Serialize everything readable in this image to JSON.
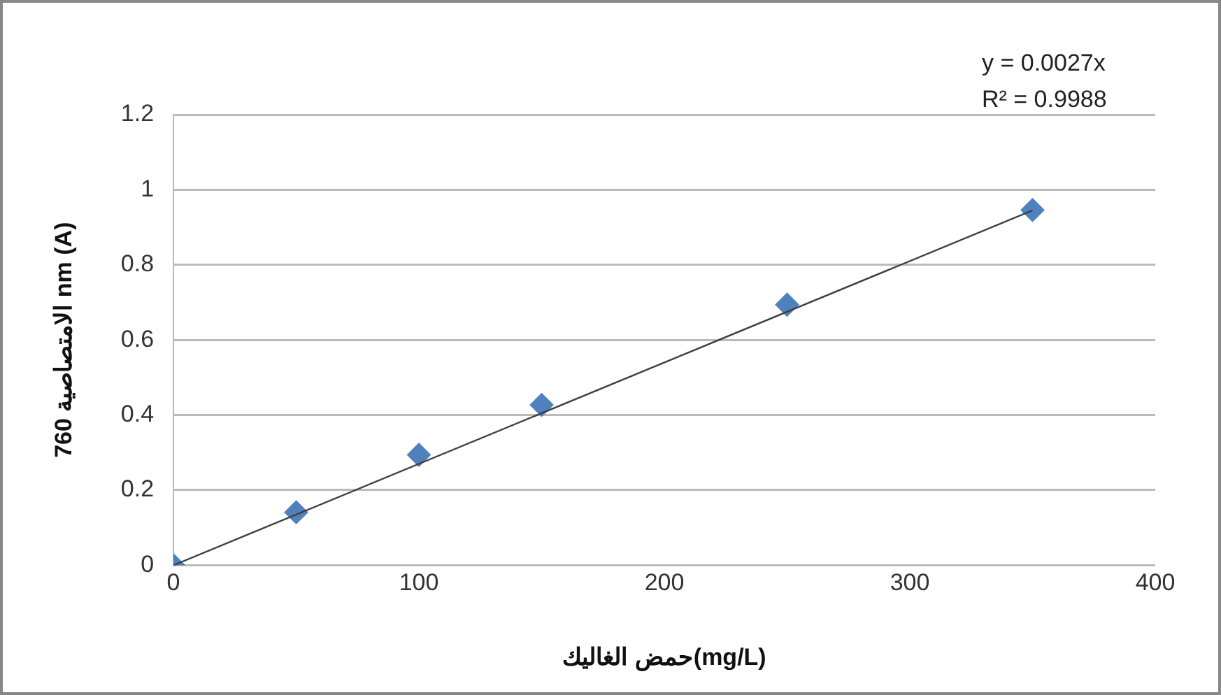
{
  "chart_data": {
    "type": "scatter",
    "xlabel": "حمض الغاليك(mg/L)",
    "ylabel": "الامتصاصية 760 nm (A)",
    "annotations": [
      "y = 0.0027x",
      "R² = 0.9988"
    ],
    "series": [
      {
        "color": "#4f81bd",
        "marker": "diamond",
        "x": [
          0,
          50,
          100,
          150,
          250,
          350
        ],
        "values": [
          0,
          0.141,
          0.294,
          0.427,
          0.694,
          0.946
        ]
      },
      {
        "type": "line",
        "color": "#404040",
        "marker": "none",
        "x": [
          0,
          350
        ],
        "values": [
          0,
          0.945
        ]
      }
    ],
    "xlim": [
      0,
      400
    ],
    "xticks": [
      0,
      100,
      200,
      300,
      400
    ],
    "ylim": [
      0,
      1.2
    ],
    "yticks": [
      0,
      0.2,
      0.4,
      0.6,
      0.8,
      1,
      1.2
    ],
    "grid": "y",
    "legend": false
  }
}
